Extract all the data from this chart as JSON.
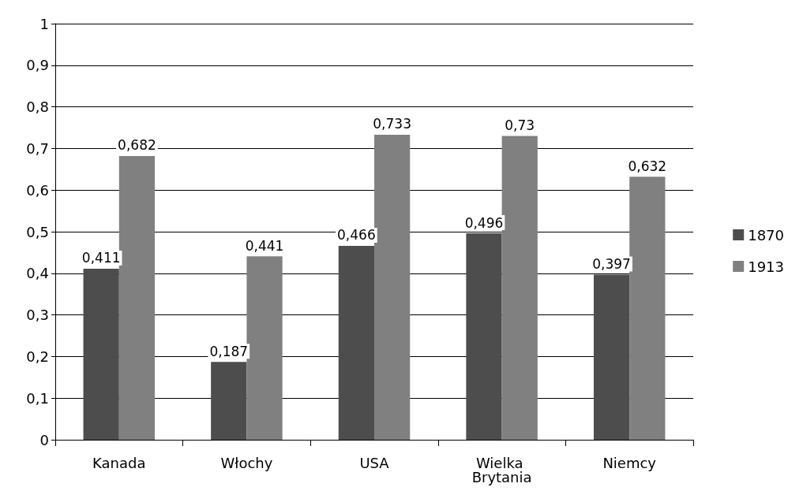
{
  "chart_data": {
    "type": "bar",
    "categories": [
      "Kanada",
      "Włochy",
      "USA",
      "Wielka Brytania",
      "Niemcy"
    ],
    "series": [
      {
        "name": "1870",
        "color": "#4d4d4d",
        "values": [
          0.411,
          0.187,
          0.466,
          0.496,
          0.397
        ],
        "value_labels": [
          "0,411",
          "0,187",
          "0,466",
          "0,496",
          "0,397"
        ]
      },
      {
        "name": "1913",
        "color": "#808080",
        "values": [
          0.682,
          0.441,
          0.733,
          0.73,
          0.632
        ],
        "value_labels": [
          "0,682",
          "0,441",
          "0,733",
          "0,73",
          "0,632"
        ]
      }
    ],
    "ylim": [
      0,
      1
    ],
    "yticks": [
      {
        "value": 0,
        "label": "0"
      },
      {
        "value": 0.1,
        "label": "0,1"
      },
      {
        "value": 0.2,
        "label": "0,2"
      },
      {
        "value": 0.3,
        "label": "0,3"
      },
      {
        "value": 0.4,
        "label": "0,4"
      },
      {
        "value": 0.5,
        "label": "0,5"
      },
      {
        "value": 0.6,
        "label": "0,6"
      },
      {
        "value": 0.7,
        "label": "0,7"
      },
      {
        "value": 0.8,
        "label": "0,8"
      },
      {
        "value": 0.9,
        "label": "0,9"
      },
      {
        "value": 1,
        "label": "1"
      }
    ],
    "grid": "y",
    "legend": "right"
  }
}
